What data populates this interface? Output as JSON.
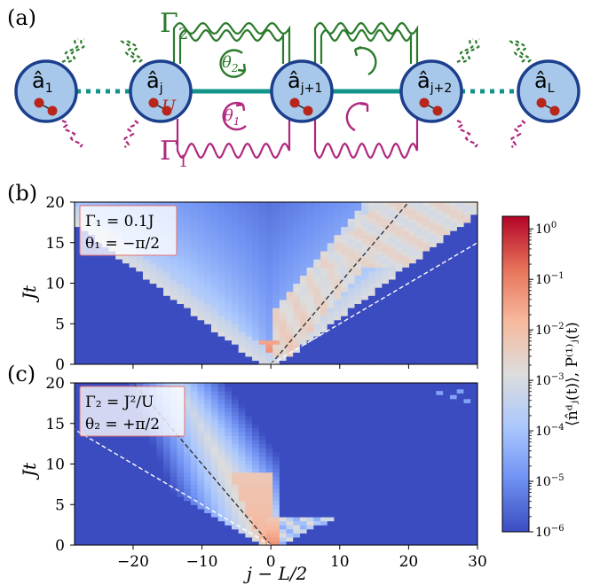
{
  "panel_a": {
    "label": "(a)",
    "sites": [
      {
        "op": "â",
        "sub": "1"
      },
      {
        "op": "â",
        "sub": "j"
      },
      {
        "op": "â",
        "sub": "j+1"
      },
      {
        "op": "â",
        "sub": "j+2"
      },
      {
        "op": "â",
        "sub": "L"
      }
    ],
    "u_label": "U",
    "gamma2": "Γ",
    "gamma2_sub": "2",
    "gamma1": "Γ",
    "gamma1_sub": "1",
    "theta2": "θ",
    "theta2_sub": "2",
    "theta1": "θ",
    "theta1_sub": "1",
    "colors": {
      "green": "#2a7a2a",
      "magenta": "#b0277e",
      "teal": "#13948a",
      "site_fill": "#a7c8ea",
      "site_stroke": "#1b3f8c",
      "dot": "#b8251b"
    }
  },
  "panel_b": {
    "label": "(b)",
    "legend_line1": "Γ₁ = 0.1J",
    "legend_line2": "θ₁ = −π/2"
  },
  "panel_c": {
    "label": "(c)",
    "legend_line1": "Γ₂ = J²/U",
    "legend_line2": "θ₂ = +π/2"
  },
  "chart_data": [
    {
      "type": "heatmap",
      "panel": "b",
      "x_ticks": [
        -20,
        -10,
        0,
        10,
        20,
        30
      ],
      "y_ticks": [
        0,
        5,
        10,
        15,
        20
      ],
      "xlim": [
        -28.5,
        30
      ],
      "ylim": [
        0,
        20
      ],
      "ylabel": "Jt",
      "xlabel": "",
      "description_lines": [
        {
          "style": "black-dashed",
          "from": [
            0,
            0
          ],
          "to": [
            20,
            20
          ]
        },
        {
          "style": "white-dashed",
          "from": [
            0,
            0
          ],
          "to": [
            30,
            15
          ]
        }
      ],
      "scale": "log"
    },
    {
      "type": "heatmap",
      "panel": "c",
      "x_ticks": [
        -20,
        -10,
        0,
        10,
        20,
        30
      ],
      "y_ticks": [
        0,
        5,
        10,
        15,
        20
      ],
      "xlim": [
        -28.5,
        30
      ],
      "ylim": [
        0,
        20
      ],
      "ylabel": "Jt",
      "xlabel": "j − L/2",
      "description_lines": [
        {
          "style": "black-dashed",
          "from": [
            0,
            0
          ],
          "to": [
            -20,
            20
          ]
        },
        {
          "style": "white-dashed",
          "from": [
            0,
            0
          ],
          "to": [
            -30,
            15
          ]
        }
      ],
      "scale": "log"
    }
  ],
  "colorbar": {
    "label": "⟨n̂ᵈⱼ(t)⟩,  P⁽¹⁾ⱼ(t)",
    "ticks": [
      {
        "base": "10",
        "exp": "0"
      },
      {
        "base": "10",
        "exp": "−1"
      },
      {
        "base": "10",
        "exp": "−2"
      },
      {
        "base": "10",
        "exp": "−3"
      },
      {
        "base": "10",
        "exp": "−4"
      },
      {
        "base": "10",
        "exp": "−5"
      },
      {
        "base": "10",
        "exp": "−6"
      }
    ],
    "range_log10": [
      -6,
      0.25
    ],
    "colors": [
      "#3b4cc0",
      "#6f92f3",
      "#aac7fd",
      "#dddddd",
      "#f7b89c",
      "#e7745b",
      "#b40426"
    ]
  }
}
